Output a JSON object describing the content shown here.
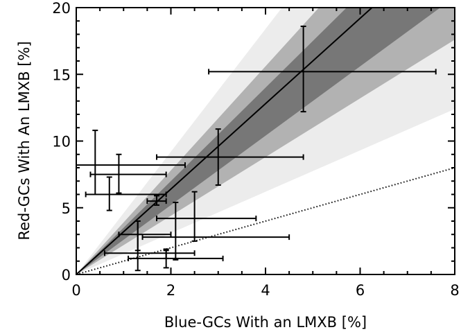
{
  "chart_data": {
    "type": "scatter",
    "xlabel": "Blue-GCs With an LMXB [%]",
    "ylabel": "Red-GCs With An LMXB [%]",
    "xlim": [
      0,
      8
    ],
    "ylim": [
      0,
      20
    ],
    "x_ticks": [
      0,
      2,
      4,
      6,
      8
    ],
    "y_ticks": [
      0,
      5,
      10,
      15,
      20
    ],
    "x_tick_labels": [
      "0",
      "2",
      "4",
      "6",
      "8"
    ],
    "y_tick_labels": [
      "0",
      "5",
      "10",
      "15",
      "20"
    ],
    "grid": false,
    "best_fit_slope": 3.2,
    "reference_line_slope": 1.0,
    "confidence_bands": [
      {
        "slope_low": 1.55,
        "slope_high": 4.6,
        "color": "#ececec"
      },
      {
        "slope_low": 2.2,
        "slope_high": 3.9,
        "color": "#b2b2b2"
      },
      {
        "slope_low": 2.6,
        "slope_high": 3.5,
        "color": "#777777"
      }
    ],
    "points": [
      {
        "x": 4.8,
        "xerr": [
          2.0,
          2.8
        ],
        "y": 15.2,
        "yerr": [
          3.0,
          3.4
        ]
      },
      {
        "x": 3.0,
        "xerr": [
          1.3,
          1.8
        ],
        "y": 8.8,
        "yerr": [
          2.1,
          2.1
        ]
      },
      {
        "x": 0.4,
        "xerr": [
          0.4,
          1.9
        ],
        "y": 8.2,
        "yerr": [
          2.2,
          2.6
        ]
      },
      {
        "x": 0.9,
        "xerr": [
          0.6,
          1.0
        ],
        "y": 7.5,
        "yerr": [
          1.4,
          1.5
        ]
      },
      {
        "x": 0.7,
        "xerr": [
          0.5,
          1.2
        ],
        "y": 6.0,
        "yerr": [
          1.2,
          1.3
        ]
      },
      {
        "x": 1.7,
        "xerr": [
          0.2,
          0.2
        ],
        "y": 5.5,
        "yerr": [
          0.3,
          0.4
        ]
      },
      {
        "x": 2.5,
        "xerr": [
          0.8,
          1.3
        ],
        "y": 4.2,
        "yerr": [
          1.7,
          2.0
        ]
      },
      {
        "x": 2.1,
        "xerr": [
          0.7,
          2.4
        ],
        "y": 2.8,
        "yerr": [
          1.7,
          2.6
        ]
      },
      {
        "x": 1.3,
        "xerr": [
          0.4,
          0.7
        ],
        "y": 3.0,
        "yerr": [
          1.2,
          1.0
        ]
      },
      {
        "x": 1.9,
        "xerr": [
          1.3,
          0.6
        ],
        "y": 1.6,
        "yerr": [
          0.4,
          0.3
        ]
      },
      {
        "x": 1.9,
        "xerr": [
          0.8,
          1.2
        ],
        "y": 1.2,
        "yerr": [
          0.7,
          0.6
        ]
      },
      {
        "x": 1.3,
        "xerr": [
          0.0,
          0.0
        ],
        "y": 2.1,
        "yerr": [
          1.8,
          1.9
        ]
      }
    ]
  }
}
